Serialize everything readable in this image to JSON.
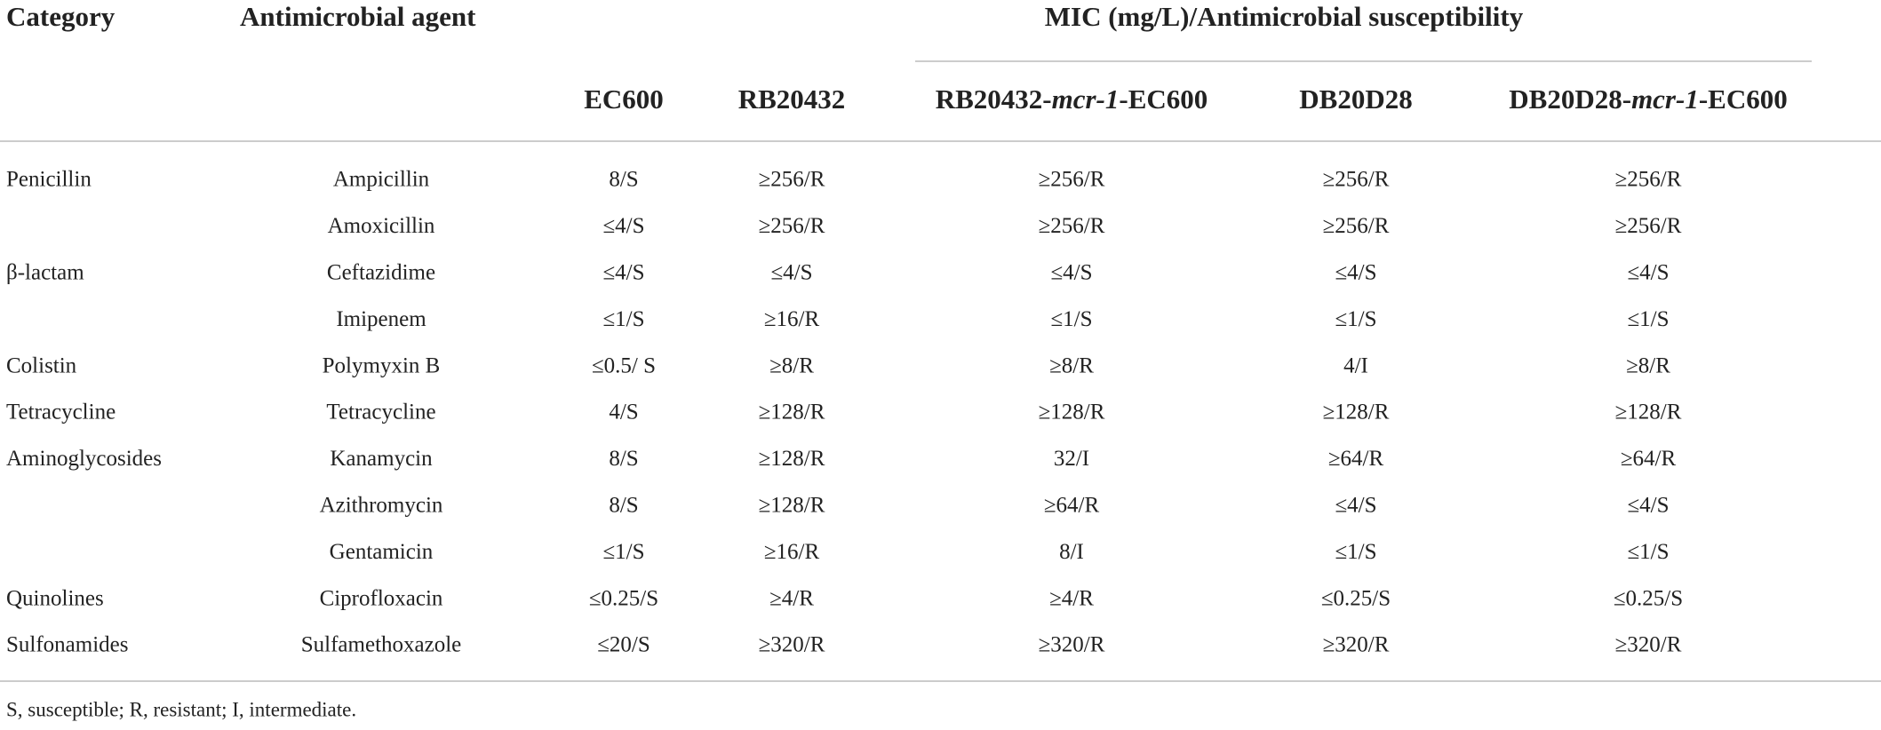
{
  "table": {
    "header": {
      "category": "Category",
      "agent": "Antimicrobial agent",
      "group": "MIC (mg/L)/Antimicrobial susceptibility"
    },
    "columns": [
      {
        "parts": [
          "EC600"
        ]
      },
      {
        "parts": [
          "RB20432"
        ]
      },
      {
        "parts": [
          "RB20432-",
          "mcr-1",
          "-EC600"
        ]
      },
      {
        "parts": [
          "DB20D28"
        ]
      },
      {
        "parts": [
          "DB20D28-",
          "mcr-1",
          "-EC600"
        ]
      }
    ],
    "rows": [
      [
        "Penicillin",
        "Ampicillin",
        "8/S",
        "≥256/R",
        "≥256/R",
        "≥256/R",
        "≥256/R"
      ],
      [
        null,
        "Amoxicillin",
        "≤4/S",
        "≥256/R",
        "≥256/R",
        "≥256/R",
        "≥256/R"
      ],
      [
        "β-lactam",
        "Ceftazidime",
        "≤4/S",
        "≤4/S",
        "≤4/S",
        "≤4/S",
        "≤4/S"
      ],
      [
        null,
        "Imipenem",
        "≤1/S",
        "≥16/R",
        "≤1/S",
        "≤1/S",
        "≤1/S"
      ],
      [
        "Colistin",
        "Polymyxin B",
        "≤0.5/ S",
        "≥8/R",
        "≥8/R",
        "4/I",
        "≥8/R"
      ],
      [
        "Tetracycline",
        "Tetracycline",
        "4/S",
        "≥128/R",
        "≥128/R",
        "≥128/R",
        "≥128/R"
      ],
      [
        "Aminoglycosides",
        "Kanamycin",
        "8/S",
        "≥128/R",
        "32/I",
        "≥64/R",
        "≥64/R"
      ],
      [
        null,
        "Azithromycin",
        "8/S",
        "≥128/R",
        "≥64/R",
        "≤4/S",
        "≤4/S"
      ],
      [
        null,
        "Gentamicin",
        "≤1/S",
        "≥16/R",
        "8/I",
        "≤1/S",
        "≤1/S"
      ],
      [
        "Quinolines",
        "Ciprofloxacin",
        "≤0.25/S",
        "≥4/R",
        "≥4/R",
        "≤0.25/S",
        "≤0.25/S"
      ],
      [
        "Sulfonamides",
        "Sulfamethoxazole",
        "≤20/S",
        "≥320/R",
        "≥320/R",
        "≥320/R",
        "≥320/R"
      ]
    ],
    "footnote": "S, susceptible; R, resistant; I, intermediate."
  }
}
